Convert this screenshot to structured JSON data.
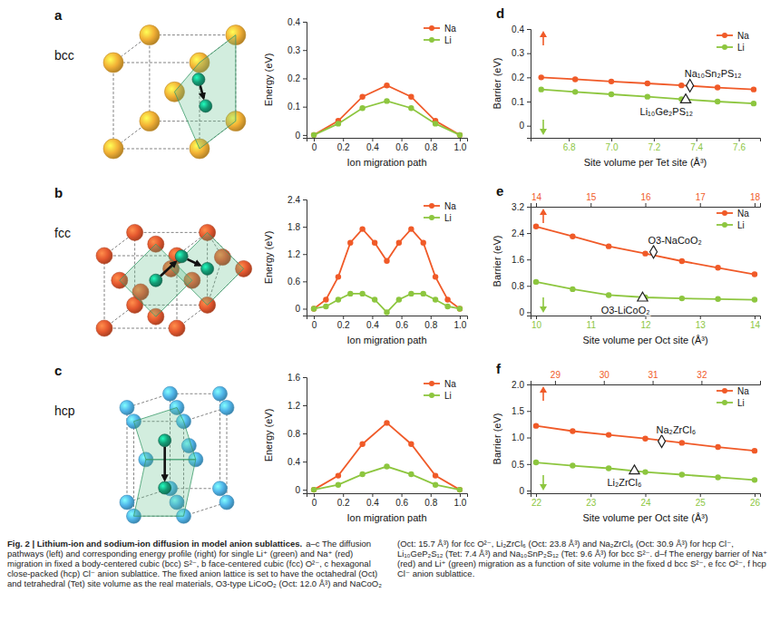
{
  "chart_data": [
    {
      "type": "line",
      "xlabel": "Ion migration path",
      "ylabel": "Energy (eV)",
      "x": [
        0,
        0.167,
        0.333,
        0.5,
        0.667,
        0.833,
        1
      ],
      "xlim": [
        -0.05,
        1.05
      ],
      "xticks": [
        0,
        0.2,
        0.4,
        0.6,
        0.8,
        {
          "value": 1,
          "label": "1.0"
        }
      ],
      "ylim": [
        -0.01,
        0.4
      ],
      "yticks": [
        0,
        0.1,
        0.2,
        0.3,
        0.4
      ],
      "legend": "upper right",
      "series": [
        {
          "name": "Na",
          "color": "#f05a28",
          "marker": "circle",
          "values": [
            0,
            0.05,
            0.135,
            0.175,
            0.135,
            0.05,
            0
          ]
        },
        {
          "name": "Li",
          "color": "#8dc63f",
          "marker": "circle",
          "values": [
            0,
            0.04,
            0.095,
            0.12,
            0.095,
            0.04,
            0
          ]
        }
      ]
    },
    {
      "type": "line",
      "xlabel": "Ion migration path",
      "ylabel": "Energy (eV)",
      "x": [
        0,
        0.083,
        0.167,
        0.25,
        0.333,
        0.417,
        0.5,
        0.583,
        0.667,
        0.75,
        0.833,
        0.917,
        1
      ],
      "xlim": [
        -0.05,
        1.05
      ],
      "xticks": [
        0,
        0.2,
        0.4,
        0.6,
        0.8,
        {
          "value": 1,
          "label": "1.0"
        }
      ],
      "ylim": [
        -0.15,
        2.4
      ],
      "yticks": [
        0,
        0.6,
        1.2,
        1.8,
        2.4
      ],
      "legend": "upper right",
      "series": [
        {
          "name": "Na",
          "color": "#f05a28",
          "marker": "circle",
          "values": [
            0,
            0.2,
            0.7,
            1.45,
            1.75,
            1.45,
            1.05,
            1.45,
            1.75,
            1.45,
            0.7,
            0.2,
            0
          ]
        },
        {
          "name": "Li",
          "color": "#8dc63f",
          "marker": "circle",
          "values": [
            0,
            0.05,
            0.2,
            0.33,
            0.33,
            0.2,
            -0.08,
            0.2,
            0.33,
            0.33,
            0.2,
            0.05,
            0
          ]
        }
      ]
    },
    {
      "type": "line",
      "xlabel": "Ion migration path",
      "ylabel": "Energy (eV)",
      "x": [
        0,
        0.167,
        0.333,
        0.5,
        0.667,
        0.833,
        1
      ],
      "xlim": [
        -0.05,
        1.05
      ],
      "xticks": [
        0,
        0.2,
        0.4,
        0.6,
        0.8,
        {
          "value": 1,
          "label": "1.0"
        }
      ],
      "ylim": [
        -0.05,
        1.6
      ],
      "yticks": [
        0,
        0.4,
        0.8,
        1.2,
        1.6
      ],
      "legend": "upper right",
      "series": [
        {
          "name": "Na",
          "color": "#f05a28",
          "marker": "circle",
          "values": [
            0,
            0.2,
            0.65,
            0.95,
            0.65,
            0.2,
            0
          ]
        },
        {
          "name": "Li",
          "color": "#8dc63f",
          "marker": "circle",
          "values": [
            0,
            0.07,
            0.22,
            0.33,
            0.22,
            0.07,
            0
          ]
        }
      ]
    },
    {
      "type": "line",
      "panel": "d",
      "xlabel": "Site volume per Tet site (Å³)",
      "ylabel": "Barrier (eV)",
      "x": [
        6.67,
        6.83,
        7.0,
        7.17,
        7.33,
        7.5,
        7.67
      ],
      "xlim": [
        6.62,
        7.7
      ],
      "xticks": [
        6.8,
        {
          "value": 7,
          "label": "7.0"
        },
        7.2,
        7.4,
        7.6
      ],
      "ylim": [
        -0.05,
        0.4
      ],
      "yticks": [
        0,
        0.1,
        0.2,
        0.3,
        0.4
      ],
      "legend": "upper right",
      "series": [
        {
          "name": "Na",
          "color": "#f05a28",
          "marker": "circle",
          "values": [
            0.2,
            0.192,
            0.183,
            0.175,
            0.167,
            0.158,
            0.15
          ]
        },
        {
          "name": "Li",
          "color": "#8dc63f",
          "marker": "circle",
          "values": [
            0.15,
            0.14,
            0.13,
            0.12,
            0.11,
            0.1,
            0.092
          ]
        }
      ],
      "annotations": [
        {
          "text": "Na₁₀Sn₂PS₁₂",
          "x": 7.37,
          "y": 0.166,
          "marker": "diamond"
        },
        {
          "text": "Li₁₀Ge₂PS₁₂",
          "x": 7.35,
          "y": 0.107,
          "marker": "triangle"
        }
      ]
    },
    {
      "type": "line",
      "panel": "e",
      "xlabel": "Site volume per Oct site (Å³)",
      "ylabel": "Barrier (eV)",
      "x": [
        10,
        10.67,
        11.33,
        12,
        12.67,
        13.33,
        14
      ],
      "xlim": [
        9.9,
        14.1
      ],
      "xticks": [
        10,
        11,
        12,
        13,
        14
      ],
      "x2lim": [
        13.9,
        18.1
      ],
      "x2ticks": [
        14,
        15,
        16,
        17,
        18
      ],
      "ylim": [
        -0.1,
        3.2
      ],
      "yticks": [
        0,
        0.8,
        1.6,
        2.4,
        3.2
      ],
      "legend": "upper right",
      "series": [
        {
          "name": "Na",
          "color": "#f05a28",
          "marker": "circle",
          "values": [
            2.6,
            2.3,
            2.0,
            1.78,
            1.55,
            1.35,
            1.15
          ]
        },
        {
          "name": "Li",
          "color": "#8dc63f",
          "marker": "circle",
          "values": [
            0.92,
            0.7,
            0.52,
            0.45,
            0.42,
            0.4,
            0.38
          ]
        }
      ],
      "annotations": [
        {
          "text": "O3-NaCoO₂",
          "x": 12.15,
          "y": 1.83,
          "marker": "diamond"
        },
        {
          "text": "O3-LiCoO₂",
          "x": 11.95,
          "y": 0.43,
          "marker": "triangle"
        }
      ]
    },
    {
      "type": "line",
      "panel": "f",
      "xlabel": "Site volume per Oct site (Å³)",
      "ylabel": "Barrier (eV)",
      "x": [
        22,
        22.67,
        23.33,
        24,
        24.67,
        25.33,
        26
      ],
      "xlim": [
        21.9,
        26.1
      ],
      "xticks": [
        22,
        23,
        24,
        25,
        26
      ],
      "x2lim": [
        28.5,
        33.2
      ],
      "x2ticks": [
        29,
        30,
        31,
        32
      ],
      "ylim": [
        -0.05,
        2.0
      ],
      "yticks": [
        0,
        0.5,
        {
          "value": 1,
          "label": "1.0"
        },
        1.5,
        {
          "value": 2,
          "label": "2.0"
        }
      ],
      "legend": "upper right",
      "series": [
        {
          "name": "Na",
          "color": "#f05a28",
          "marker": "circle",
          "values": [
            1.22,
            1.12,
            1.05,
            0.98,
            0.9,
            0.82,
            0.75
          ]
        },
        {
          "name": "Li",
          "color": "#8dc63f",
          "marker": "circle",
          "values": [
            0.53,
            0.47,
            0.42,
            0.35,
            0.3,
            0.25,
            0.2
          ]
        }
      ],
      "annotations": [
        {
          "text": "Na₂ZrCl₆",
          "x": 24.3,
          "y": 0.93,
          "marker": "diamond"
        },
        {
          "text": "Li₂ZrCl₆",
          "x": 23.8,
          "y": 0.37,
          "marker": "triangle"
        }
      ]
    }
  ],
  "structures": [
    {
      "panel": "a",
      "label": "bcc"
    },
    {
      "panel": "b",
      "label": "fcc"
    },
    {
      "panel": "c",
      "label": "hcp"
    }
  ],
  "caption": {
    "title": "Fig. 2 | Lithium-ion and sodium-ion diffusion in model anion sublattices.",
    "text": "a–c The diffusion pathways (left) and corresponding energy profile (right) for single Li⁺ (green) and Na⁺ (red) migration in fixed a body-centered cubic (bcc) S²⁻, b face-centered cubic (fcc) O²⁻, c hexagonal close-packed (hcp) Cl⁻ anion sublattice. The fixed anion lattice is set to have the octahedral (Oct) and tetrahedral (Tet) site volume as the real materials, O3-type LiCoO₂ (Oct: 12.0 Å³) and NaCoO₂ (Oct: 15.7 Å³) for fcc O²⁻, Li₂ZrCl₆ (Oct: 23.8 Å³) and Na₂ZrCl₆ (Oct: 30.9 Å³) for hcp Cl⁻, Li₁₀GeP₂S₁₂ (Tet: 7.4 Å³) and Na₁₀SnP₂S₁₂ (Tet: 9.6 Å³) for bcc S²⁻. d–f The energy barrier of Na⁺ (red) and Li⁺ (green) migration as a function of site volume in the fixed d bcc S²⁻, e fcc O²⁻, f hcp Cl⁻ anion sublattice."
  }
}
